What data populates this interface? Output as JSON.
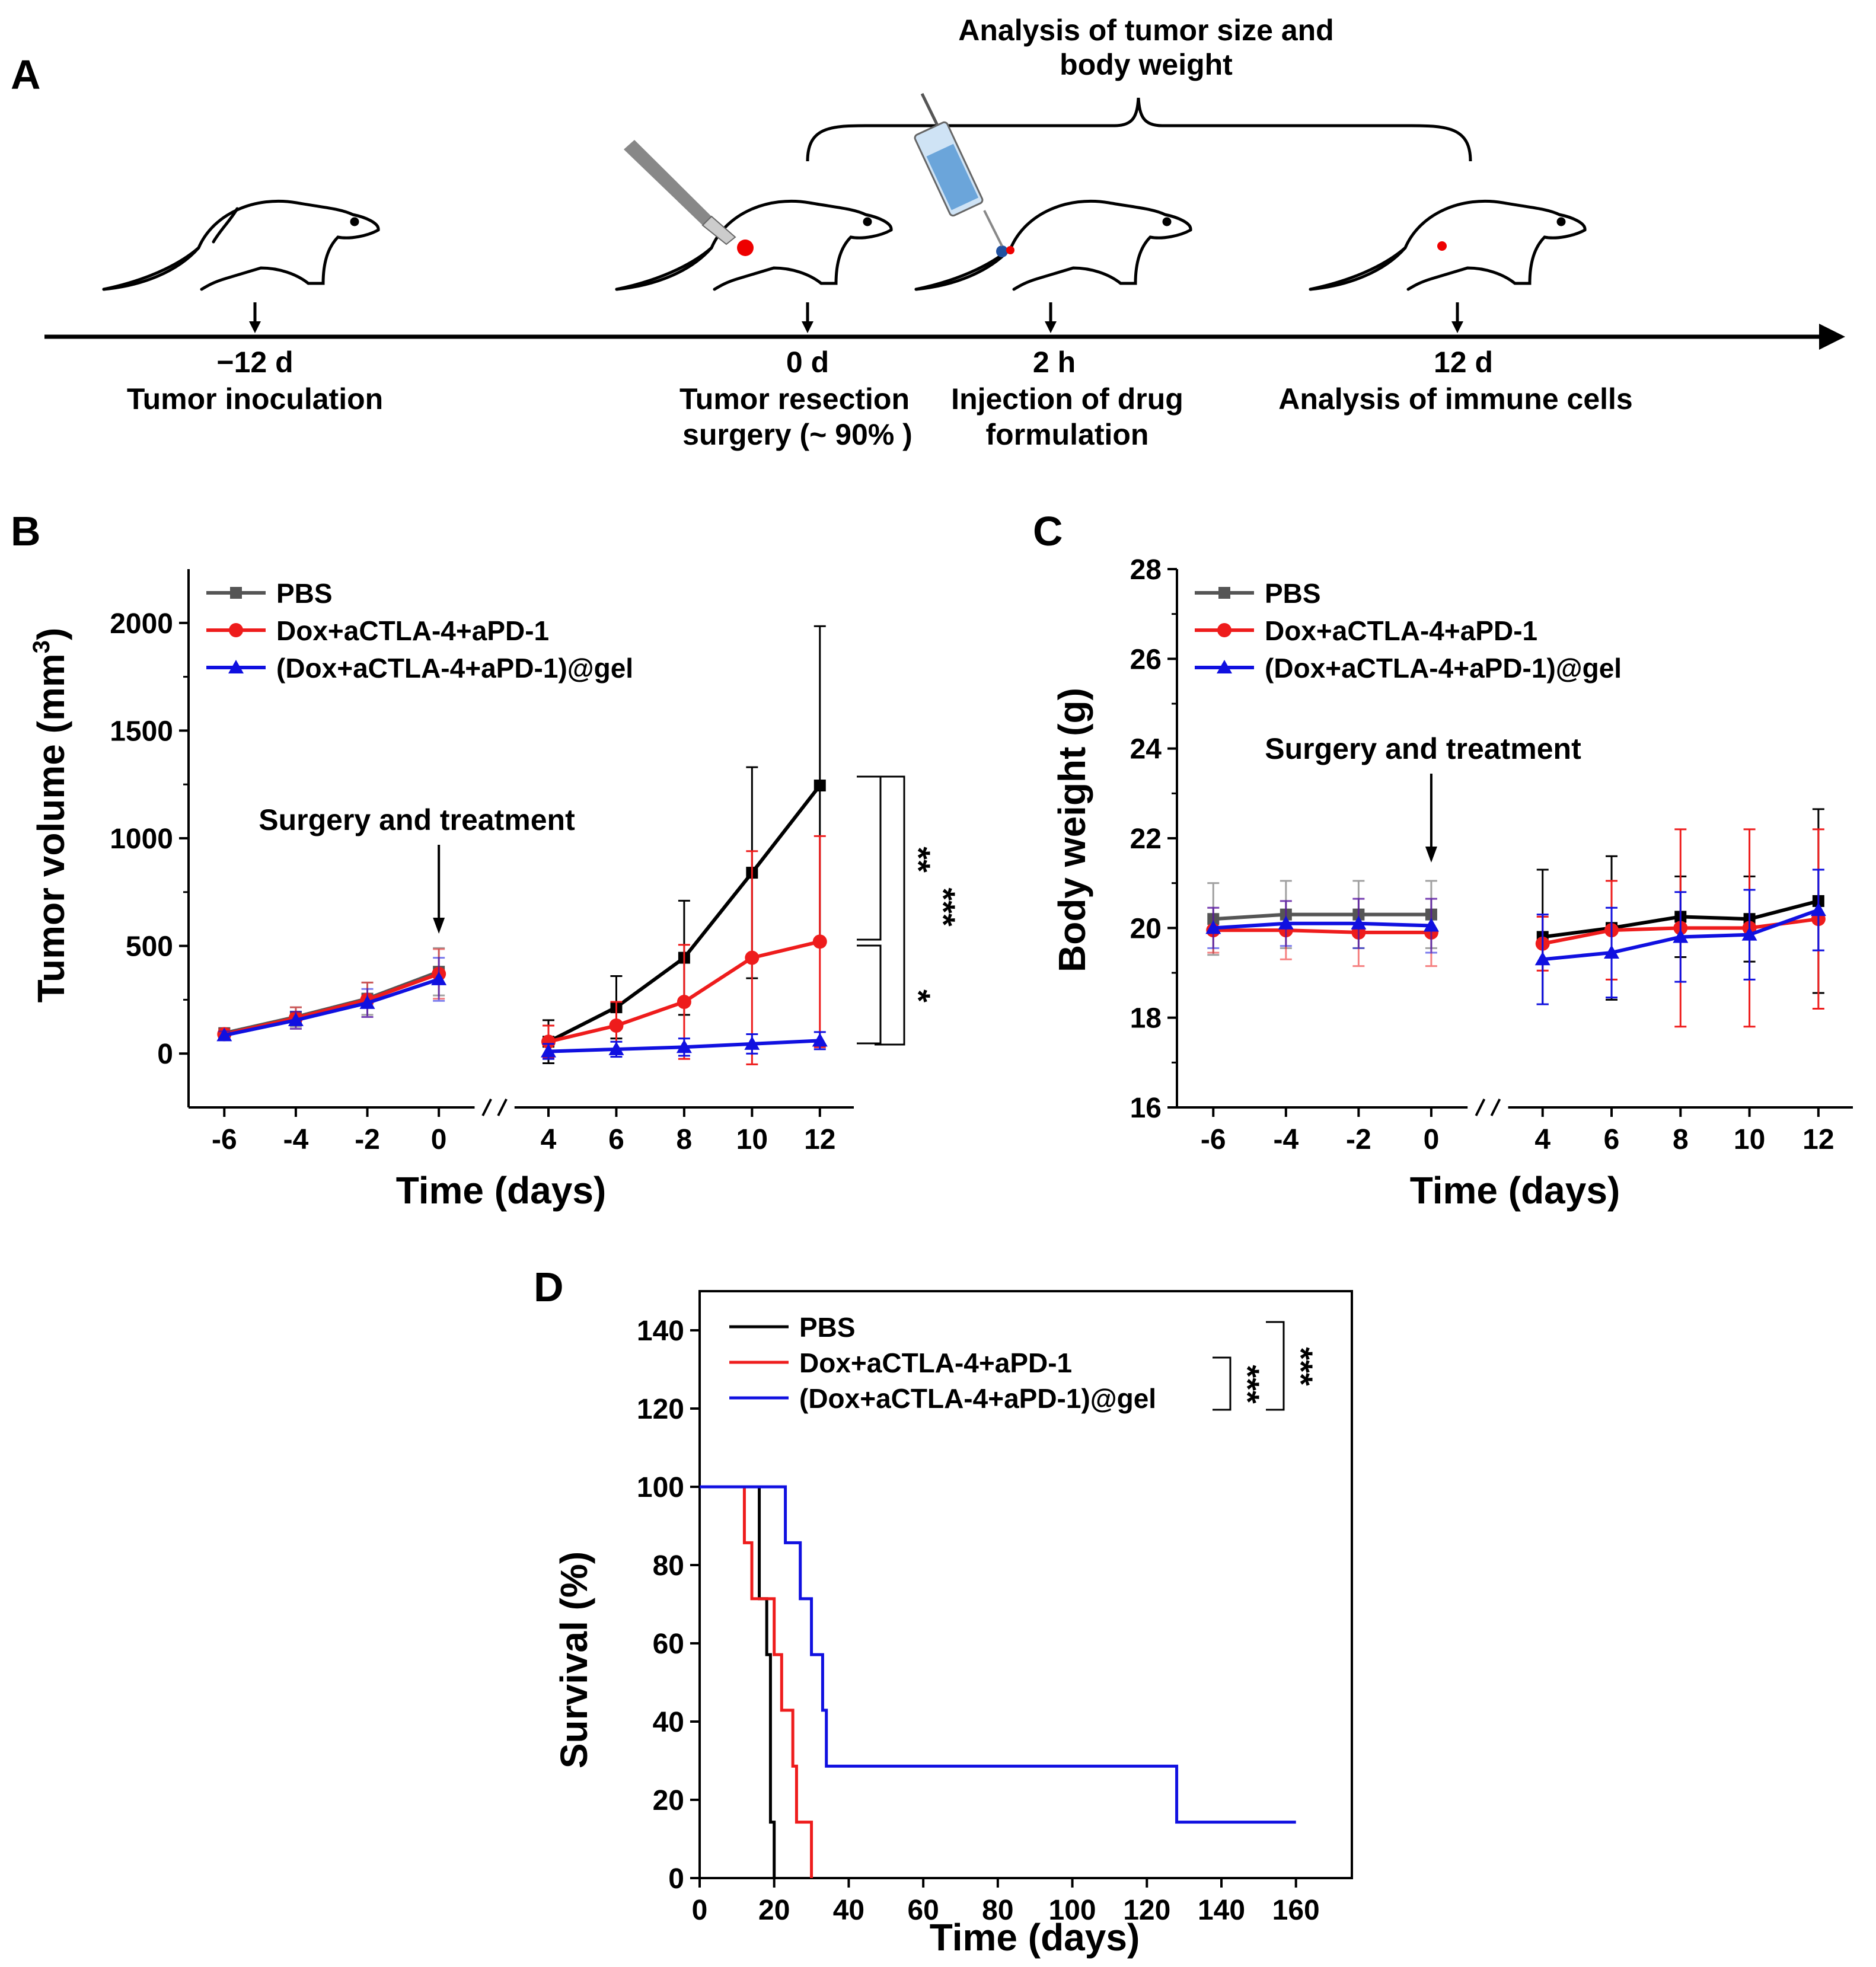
{
  "panel_labels": {
    "a": "A",
    "b": "B",
    "c": "C",
    "d": "D"
  },
  "timeline": {
    "analysis_label_line1": "Analysis of tumor size and",
    "analysis_label_line2": "body weight",
    "events": [
      {
        "time": "−12 d",
        "line1": "Tumor inoculation",
        "line2": ""
      },
      {
        "time": "0 d",
        "line1": "Tumor resection",
        "line2": "surgery (~ 90% )"
      },
      {
        "time": "2 h",
        "line1": "Injection of drug",
        "line2": "formulation"
      },
      {
        "time": "12 d",
        "line1": "Analysis of immune cells",
        "line2": ""
      }
    ]
  },
  "colors": {
    "pbs": "#000000",
    "pbs_pre": "#555555",
    "dox": "#ee1c1c",
    "gel": "#1010e0"
  },
  "chart_data": [
    {
      "id": "B",
      "type": "line",
      "title": "",
      "xlabel": "Time (days)",
      "ylabel": "Tumor volume (mm",
      "ylabel_sup": "3",
      "ylabel_end": ")",
      "xlim": [
        -7,
        13
      ],
      "x_break": [
        1,
        3
      ],
      "ylim": [
        -250,
        2250
      ],
      "xticks": [
        -6,
        -4,
        -2,
        0,
        4,
        6,
        8,
        10,
        12
      ],
      "yticks": [
        0,
        500,
        1000,
        1500,
        2000
      ],
      "legend": [
        "PBS",
        "Dox+aCTLA-4+aPD-1",
        "(Dox+aCTLA-4+aPD-1)@gel"
      ],
      "annotation": "Surgery and treatment",
      "significance": [
        "**",
        "*",
        "***"
      ],
      "series": [
        {
          "name": "PBS",
          "marker": "square",
          "pre": {
            "x": [
              -6,
              -4,
              -2,
              0
            ],
            "y": [
              95,
              170,
              255,
              380
            ],
            "err": [
              20,
              45,
              75,
              110
            ]
          },
          "post": {
            "x": [
              4,
              6,
              8,
              10,
              12
            ],
            "y": [
              55,
              215,
              445,
              840,
              1245
            ],
            "err": [
              100,
              145,
              265,
              490,
              740
            ]
          }
        },
        {
          "name": "Dox+aCTLA-4+aPD-1",
          "marker": "circle",
          "pre": {
            "x": [
              -6,
              -4,
              -2,
              0
            ],
            "y": [
              90,
              165,
              250,
              370
            ],
            "err": [
              25,
              50,
              80,
              115
            ]
          },
          "post": {
            "x": [
              4,
              6,
              8,
              10,
              12
            ],
            "y": [
              55,
              130,
              240,
              445,
              520
            ],
            "err": [
              75,
              110,
              265,
              495,
              490
            ]
          }
        },
        {
          "name": "(Dox+aCTLA-4+aPD-1)@gel",
          "marker": "triangle",
          "pre": {
            "x": [
              -6,
              -4,
              -2,
              0
            ],
            "y": [
              85,
              155,
              235,
              345
            ],
            "err": [
              18,
              40,
              65,
              100
            ]
          },
          "post": {
            "x": [
              4,
              6,
              8,
              10,
              12
            ],
            "y": [
              10,
              20,
              30,
              45,
              60
            ],
            "err": [
              35,
              35,
              40,
              45,
              40
            ]
          }
        }
      ]
    },
    {
      "id": "C",
      "type": "line",
      "title": "",
      "xlabel": "Time (days)",
      "ylabel": "Body weight (g)",
      "xlim": [
        -7,
        13
      ],
      "x_break": [
        1,
        3
      ],
      "ylim": [
        16,
        28
      ],
      "xticks": [
        -6,
        -4,
        -2,
        0,
        4,
        6,
        8,
        10,
        12
      ],
      "yticks": [
        16,
        18,
        20,
        22,
        24,
        26,
        28
      ],
      "legend": [
        "PBS",
        "Dox+aCTLA-4+aPD-1",
        "(Dox+aCTLA-4+aPD-1)@gel"
      ],
      "annotation": "Surgery and treatment",
      "series": [
        {
          "name": "PBS",
          "marker": "square",
          "pre": {
            "x": [
              -6,
              -4,
              -2,
              0
            ],
            "y": [
              20.2,
              20.3,
              20.3,
              20.3
            ],
            "err": [
              0.8,
              0.75,
              0.75,
              0.75
            ]
          },
          "post": {
            "x": [
              4,
              6,
              8,
              10,
              12
            ],
            "y": [
              19.8,
              20.0,
              20.25,
              20.2,
              20.6
            ],
            "err": [
              1.5,
              1.6,
              0.9,
              0.95,
              2.05
            ]
          }
        },
        {
          "name": "Dox+aCTLA-4+aPD-1",
          "marker": "circle",
          "pre": {
            "x": [
              -6,
              -4,
              -2,
              0
            ],
            "y": [
              19.95,
              19.95,
              19.9,
              19.9
            ],
            "err": [
              0.5,
              0.65,
              0.75,
              0.75
            ]
          },
          "post": {
            "x": [
              4,
              6,
              8,
              10,
              12
            ],
            "y": [
              19.65,
              19.95,
              20.0,
              20.0,
              20.2
            ],
            "err": [
              0.6,
              1.1,
              2.2,
              2.2,
              2.0
            ]
          }
        },
        {
          "name": "(Dox+aCTLA-4+aPD-1)@gel",
          "marker": "triangle",
          "pre": {
            "x": [
              -6,
              -4,
              -2,
              0
            ],
            "y": [
              20.0,
              20.1,
              20.1,
              20.05
            ],
            "err": [
              0.45,
              0.5,
              0.55,
              0.6
            ]
          },
          "post": {
            "x": [
              4,
              6,
              8,
              10,
              12
            ],
            "y": [
              19.3,
              19.45,
              19.8,
              19.85,
              20.4
            ],
            "err": [
              1.0,
              1.0,
              1.0,
              1.0,
              0.9
            ]
          }
        }
      ]
    },
    {
      "id": "D",
      "type": "line",
      "title": "",
      "xlabel": "Time (days)",
      "ylabel": "Survival (%)",
      "xlim": [
        0,
        175
      ],
      "ylim": [
        0,
        150
      ],
      "xticks": [
        0,
        20,
        40,
        60,
        80,
        100,
        120,
        140,
        160
      ],
      "yticks": [
        0,
        20,
        40,
        60,
        80,
        100,
        120,
        140
      ],
      "legend": [
        "PBS",
        "Dox+aCTLA-4+aPD-1",
        "(Dox+aCTLA-4+aPD-1)@gel"
      ],
      "significance": [
        "***",
        "***"
      ],
      "series": [
        {
          "name": "PBS",
          "x": [
            0,
            16,
            18,
            19,
            20
          ],
          "y": [
            100,
            71.4,
            57.1,
            14.3,
            0
          ]
        },
        {
          "name": "Dox+aCTLA-4+aPD-1",
          "x": [
            0,
            12,
            14,
            20,
            22,
            25,
            26,
            30
          ],
          "y": [
            100,
            85.7,
            71.4,
            57.1,
            42.9,
            28.6,
            14.3,
            0
          ]
        },
        {
          "name": "(Dox+aCTLA-4+aPD-1)@gel",
          "x": [
            0,
            18,
            23,
            27,
            30,
            33,
            34,
            128,
            160
          ],
          "y": [
            100,
            100,
            85.7,
            71.4,
            57.1,
            42.9,
            28.6,
            14.3,
            14.3
          ]
        }
      ]
    }
  ]
}
